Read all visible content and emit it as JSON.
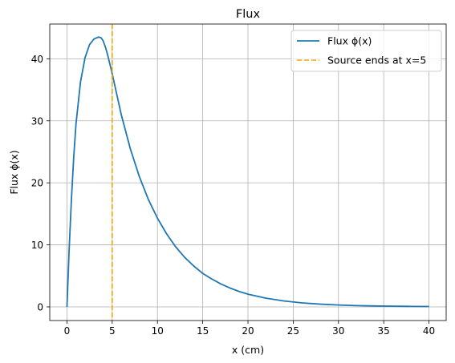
{
  "chart_data": {
    "type": "line",
    "title": "Flux",
    "xlabel": "x (cm)",
    "ylabel": "Flux ϕ(x)",
    "xlim": [
      -1.9,
      41.9
    ],
    "ylim": [
      -2.2,
      45.6
    ],
    "xticks": [
      0,
      5,
      10,
      15,
      20,
      25,
      30,
      35,
      40
    ],
    "yticks": [
      0,
      10,
      20,
      30,
      40
    ],
    "grid": true,
    "legend_position": "top-right",
    "series": [
      {
        "name": "Flux ϕ(x)",
        "color": "#1f77b4",
        "style": "solid",
        "x": [
          0,
          0.25,
          0.5,
          0.75,
          1,
          1.5,
          2,
          2.5,
          3,
          3.5,
          3.75,
          4,
          4.25,
          4.5,
          5,
          6,
          7,
          8,
          9,
          10,
          11,
          12,
          13,
          14,
          15,
          16,
          17,
          18,
          19,
          20,
          22,
          24,
          26,
          28,
          30,
          32,
          34,
          36,
          38,
          40
        ],
        "y": [
          0,
          9.5,
          17.5,
          24.2,
          29.5,
          36.3,
          40.2,
          42.3,
          43.2,
          43.5,
          43.4,
          42.9,
          41.9,
          40.6,
          37.6,
          31.0,
          25.5,
          21.0,
          17.3,
          14.3,
          11.8,
          9.7,
          8.0,
          6.6,
          5.4,
          4.5,
          3.7,
          3.05,
          2.5,
          2.05,
          1.4,
          0.95,
          0.64,
          0.44,
          0.3,
          0.21,
          0.15,
          0.11,
          0.08,
          0.06
        ]
      },
      {
        "name": "Source ends at x=5",
        "color": "#ffa500",
        "style": "dashed",
        "vline_x": 5
      }
    ]
  }
}
